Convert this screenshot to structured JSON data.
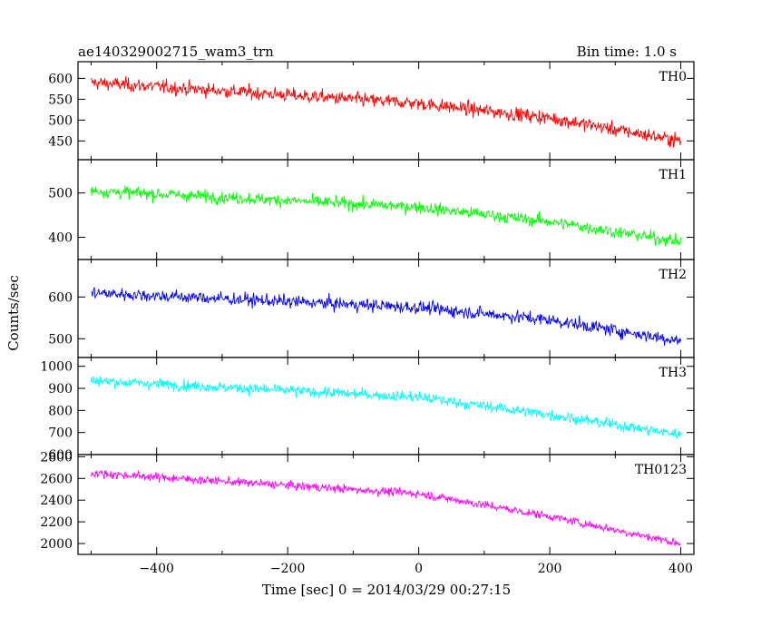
{
  "header": {
    "left_title": "ae140329002715_wam3_trn",
    "right_title": "Bin time: 1.0 s"
  },
  "axes": {
    "ylabel": "Counts/sec",
    "xlabel": "Time [sec] 0 = 2014/03/29 00:27:15"
  },
  "chart_data": [
    {
      "type": "line",
      "name": "TH0",
      "color": "#ff0000",
      "xlim": [
        -520,
        420
      ],
      "ylim": [
        405,
        640
      ],
      "yticks": [
        450,
        500,
        550,
        600
      ],
      "trend": {
        "x": [
          -500,
          0,
          200,
          400
        ],
        "y": [
          590,
          540,
          505,
          450
        ]
      },
      "noise": 30
    },
    {
      "type": "line",
      "name": "TH1",
      "color": "#00ff00",
      "xlim": [
        -520,
        420
      ],
      "ylim": [
        350,
        575
      ],
      "yticks": [
        400,
        500
      ],
      "trend": {
        "x": [
          -500,
          0,
          200,
          400
        ],
        "y": [
          505,
          468,
          435,
          390
        ]
      },
      "noise": 25
    },
    {
      "type": "line",
      "name": "TH2",
      "color": "#0000ff",
      "xlim": [
        -520,
        420
      ],
      "ylim": [
        455,
        690
      ],
      "yticks": [
        500,
        600
      ],
      "trend": {
        "x": [
          -500,
          0,
          200,
          400
        ],
        "y": [
          610,
          575,
          545,
          495
        ]
      },
      "noise": 28
    },
    {
      "type": "line",
      "name": "TH3",
      "color": "#00ffff",
      "xlim": [
        -520,
        420
      ],
      "ylim": [
        600,
        1040
      ],
      "yticks": [
        600,
        700,
        800,
        900,
        1000
      ],
      "trend": {
        "x": [
          -500,
          0,
          200,
          400
        ],
        "y": [
          935,
          860,
          780,
          690
        ]
      },
      "noise": 45
    },
    {
      "type": "line",
      "name": "TH0123",
      "color": "#ff00ff",
      "xlim": [
        -520,
        420
      ],
      "ylim": [
        1900,
        2820
      ],
      "yticks": [
        2000,
        2200,
        2400,
        2600,
        2800
      ],
      "trend": {
        "x": [
          -500,
          0,
          200,
          400
        ],
        "y": [
          2650,
          2460,
          2250,
          2000
        ]
      },
      "noise": 70
    }
  ],
  "xticks": [
    -400,
    -200,
    0,
    200,
    400
  ]
}
